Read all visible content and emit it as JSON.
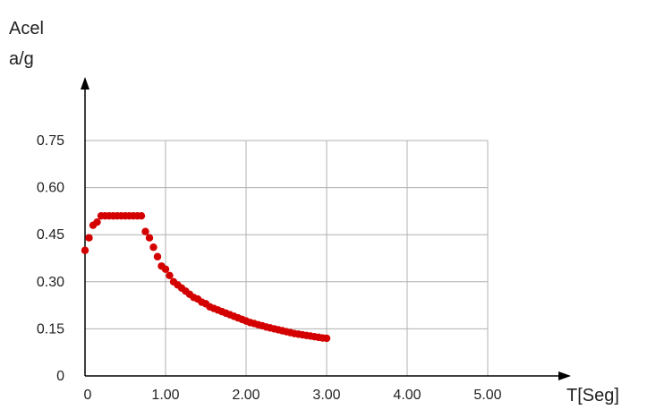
{
  "chart_data": {
    "type": "scatter",
    "ylabel_line1": "Acel",
    "ylabel_line2": "a/g",
    "xlabel": "T[Seg]",
    "xlim": [
      0,
      5.0
    ],
    "ylim": [
      0,
      0.75
    ],
    "grid": true,
    "x_ticks": [
      {
        "value": 0,
        "label": "0"
      },
      {
        "value": 1.0,
        "label": "1.00"
      },
      {
        "value": 2.0,
        "label": "2.00"
      },
      {
        "value": 3.0,
        "label": "3.00"
      },
      {
        "value": 4.0,
        "label": "4.00"
      },
      {
        "value": 5.0,
        "label": "5.00"
      }
    ],
    "y_ticks": [
      {
        "value": 0,
        "label": "0"
      },
      {
        "value": 0.15,
        "label": "0.15"
      },
      {
        "value": 0.3,
        "label": "0.30"
      },
      {
        "value": 0.45,
        "label": "0.45"
      },
      {
        "value": 0.6,
        "label": "0.60"
      },
      {
        "value": 0.75,
        "label": "0.75"
      }
    ],
    "series": [
      {
        "color": "#d40000",
        "x": [
          0.0,
          0.05,
          0.1,
          0.15,
          0.2,
          0.25,
          0.3,
          0.35,
          0.4,
          0.45,
          0.5,
          0.55,
          0.6,
          0.65,
          0.7,
          0.75,
          0.8,
          0.85,
          0.9,
          0.95,
          1.0,
          1.05,
          1.1,
          1.15,
          1.2,
          1.25,
          1.3,
          1.35,
          1.4,
          1.45,
          1.5,
          1.55,
          1.6,
          1.65,
          1.7,
          1.75,
          1.8,
          1.85,
          1.9,
          1.95,
          2.0,
          2.05,
          2.1,
          2.15,
          2.2,
          2.25,
          2.3,
          2.35,
          2.4,
          2.45,
          2.5,
          2.55,
          2.6,
          2.65,
          2.7,
          2.75,
          2.8,
          2.85,
          2.9,
          2.95,
          3.0
        ],
        "y": [
          0.4,
          0.44,
          0.48,
          0.49,
          0.51,
          0.51,
          0.51,
          0.51,
          0.51,
          0.51,
          0.51,
          0.51,
          0.51,
          0.51,
          0.51,
          0.46,
          0.44,
          0.41,
          0.38,
          0.35,
          0.34,
          0.32,
          0.3,
          0.29,
          0.28,
          0.27,
          0.26,
          0.25,
          0.245,
          0.235,
          0.23,
          0.22,
          0.215,
          0.21,
          0.205,
          0.2,
          0.195,
          0.19,
          0.185,
          0.18,
          0.175,
          0.17,
          0.167,
          0.163,
          0.16,
          0.156,
          0.153,
          0.15,
          0.147,
          0.144,
          0.141,
          0.138,
          0.135,
          0.133,
          0.131,
          0.129,
          0.127,
          0.125,
          0.123,
          0.121,
          0.12
        ]
      }
    ]
  }
}
